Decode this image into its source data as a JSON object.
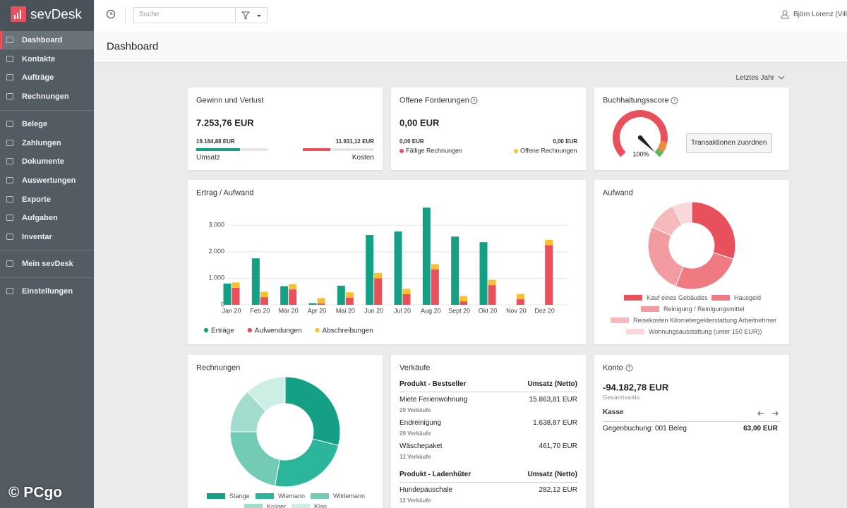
{
  "sidebar": {
    "brand": "sevDesk",
    "nav": [
      "Dashboard",
      "Kontakte",
      "Aufträge",
      "Rechnungen",
      "Belege",
      "Zahlungen",
      "Dokumente",
      "Auswertungen",
      "Exporte",
      "Aufgaben",
      "Inventar",
      "Mein sevDesk",
      "Einstellungen"
    ]
  },
  "topbar": {
    "search_placeholder": "Suche",
    "user": "Björn Lorenz (Villa"
  },
  "header": {
    "title": "Dashboard"
  },
  "period": "Letztes Jahr",
  "profit": {
    "title": "Gewinn und Verlust",
    "total": "7.253,76 EUR",
    "revenue": {
      "value": 19184.88,
      "label": "19.184,88 EUR"
    },
    "revenue_label": "Umsatz",
    "costs": {
      "value": 11931.12,
      "label": "11.931,12 EUR"
    },
    "costs_label": "Kosten"
  },
  "receivables": {
    "title": "Offene Forderungen",
    "total": "0,00 EUR",
    "due": "0,00 EUR",
    "due_label": "Fällige Rechnungen",
    "open": "0,00 EUR",
    "open_label": "Offene Rechnungen"
  },
  "score": {
    "button": "Transaktionen zuordnen"
  },
  "sales": {
    "title": "Verkäufe",
    "sections": [
      {
        "header": [
          "Produkt - Bestseller",
          "Umsatz (Netto)"
        ],
        "rows": [
          {
            "name": "Miete Ferienwohnung",
            "count": "29 Verkäufe",
            "amount": "15.863,81 EUR"
          },
          {
            "name": "Endreinigung",
            "count": "29 Verkäufe",
            "amount": "1.638,87 EUR"
          },
          {
            "name": "Wäschepaket",
            "count": "12 Verkäufe",
            "amount": "461,70 EUR"
          }
        ]
      },
      {
        "header": [
          "Produkt - Ladenhüter",
          "Umsatz (Netto)"
        ],
        "rows": [
          {
            "name": "Hundepauschale",
            "count": "12 Verkäufe",
            "amount": "282,12 EUR"
          }
        ]
      }
    ]
  },
  "account": {
    "title": "Konto",
    "balance": "-94.182,78 EUR",
    "balance_label": "Gesamtsaldo",
    "section": "Kasse",
    "rows": [
      {
        "name": "Gegenbuchung: 001 Beleg",
        "amount": "63,00 EUR"
      }
    ]
  },
  "watermark": "© PCgo",
  "chart_data": [
    {
      "type": "bar",
      "title": "Ertrag / Aufwand",
      "categories": [
        "Jan 20",
        "Feb 20",
        "Mär 20",
        "Apr 20",
        "Mai 20",
        "Jun 20",
        "Jul 20",
        "Aug 20",
        "Sept 20",
        "Okt 20",
        "Nov 20",
        "Dez 20"
      ],
      "series": [
        {
          "name": "Erträge",
          "color": "#13a085",
          "values": [
            800,
            1750,
            700,
            60,
            720,
            2630,
            2760,
            3660,
            2570,
            2360,
            0,
            0
          ]
        },
        {
          "name": "Aufwendungen",
          "color": "#e8505b",
          "values": [
            640,
            290,
            580,
            50,
            270,
            1000,
            400,
            1330,
            130,
            740,
            210,
            2250
          ]
        },
        {
          "name": "Abschreibungen",
          "color": "#f6c02e",
          "values": [
            200,
            200,
            200,
            200,
            200,
            200,
            200,
            200,
            200,
            200,
            200,
            200
          ]
        }
      ],
      "ylim": [
        0,
        3800
      ],
      "yticks": [
        0,
        {
          "value": 1000,
          "label": "1.000"
        },
        {
          "value": 2000,
          "label": "2.000"
        },
        {
          "value": 3000,
          "label": "3.000"
        }
      ],
      "grid": true
    },
    {
      "type": "donut",
      "title": "Aufwand",
      "categories": [
        "Kauf eines Gebäudes",
        "Hausgeld",
        "Reinigung / Reinigungsmittel",
        "Reisekosten Kilometergelderstattung Arbeitnehmer",
        "Wohnungsausstattung (unter 150 EUR))"
      ],
      "values": [
        30,
        26,
        26,
        11,
        7
      ],
      "colors": [
        "#e8505b",
        "#f07a82",
        "#f29ba0",
        "#f6b9bc",
        "#fad8d9"
      ]
    },
    {
      "type": "donut",
      "title": "Rechnungen",
      "categories": [
        "Stange",
        "Wiemann",
        "Wildemann",
        "Krüger",
        "Klan"
      ],
      "values": [
        29,
        24,
        22,
        13,
        12
      ],
      "colors": [
        "#13a085",
        "#2bb59a",
        "#72cbb5",
        "#a2dccd",
        "#cdeee4"
      ]
    },
    {
      "type": "gauge",
      "title": "Buchhaltungsscore",
      "values": [
        100
      ],
      "value_labels": [
        "100%"
      ],
      "ylim": [
        0,
        100
      ]
    }
  ]
}
